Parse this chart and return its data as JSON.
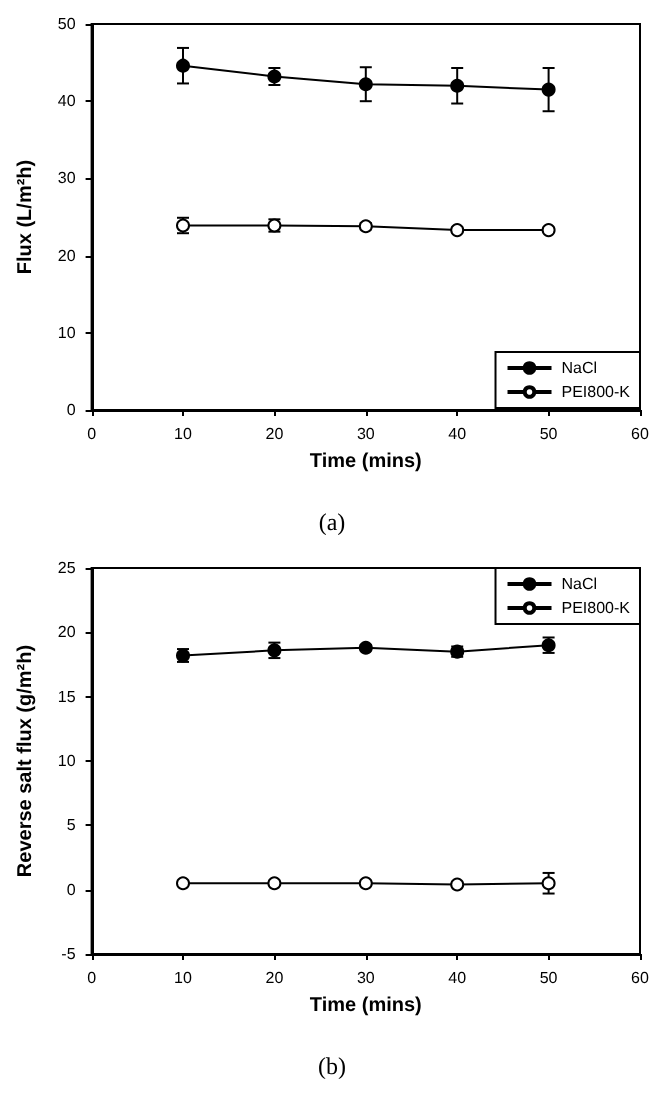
{
  "chart_data": [
    {
      "type": "line",
      "xlabel": "Time (mins)",
      "ylabel": "Flux (L/m²h)",
      "annotations": [
        "(a)"
      ],
      "x": [
        10,
        20,
        30,
        40,
        50
      ],
      "xlim": [
        0,
        60
      ],
      "xticks": [
        0,
        10,
        20,
        30,
        40,
        50,
        60
      ],
      "ylim": [
        0,
        50
      ],
      "yticks": [
        0,
        10,
        20,
        30,
        40,
        50
      ],
      "legend": "bottom right",
      "grid": false,
      "marker": "circle",
      "line_style": "solid",
      "series": [
        {
          "name": "NaCl",
          "color": "#000000",
          "values": [
            44.6,
            43.2,
            42.2,
            42.0,
            41.5
          ],
          "errors": [
            2.3,
            1.1,
            2.2,
            2.3,
            2.8
          ]
        },
        {
          "name": "PEI800-K",
          "color": "#000000",
          "values": [
            23.9,
            23.9,
            23.8,
            23.3,
            23.3
          ],
          "errors": [
            1.0,
            0.8,
            0.4,
            0.3,
            0.2
          ]
        }
      ]
    },
    {
      "type": "line",
      "xlabel": "Time (mins)",
      "ylabel": "Reverse salt flux (g/m²h)",
      "annotations": [
        "(b)"
      ],
      "x": [
        10,
        20,
        30,
        40,
        50
      ],
      "xlim": [
        0,
        60
      ],
      "xticks": [
        0,
        10,
        20,
        30,
        40,
        50,
        60
      ],
      "ylim": [
        -5,
        25
      ],
      "yticks": [
        -5,
        0,
        5,
        10,
        15,
        20,
        25
      ],
      "legend": "top right",
      "grid": false,
      "marker": "circle",
      "line_style": "solid",
      "series": [
        {
          "name": "NaCl",
          "color": "#000000",
          "values": [
            18.2,
            18.6,
            18.8,
            18.5,
            19.0
          ],
          "errors": [
            0.5,
            0.6,
            0.2,
            0.4,
            0.6
          ]
        },
        {
          "name": "PEI800-K",
          "color": "#000000",
          "values": [
            0.5,
            0.5,
            0.5,
            0.4,
            0.5
          ],
          "errors": [
            null,
            null,
            null,
            null,
            0.8
          ]
        }
      ]
    }
  ]
}
